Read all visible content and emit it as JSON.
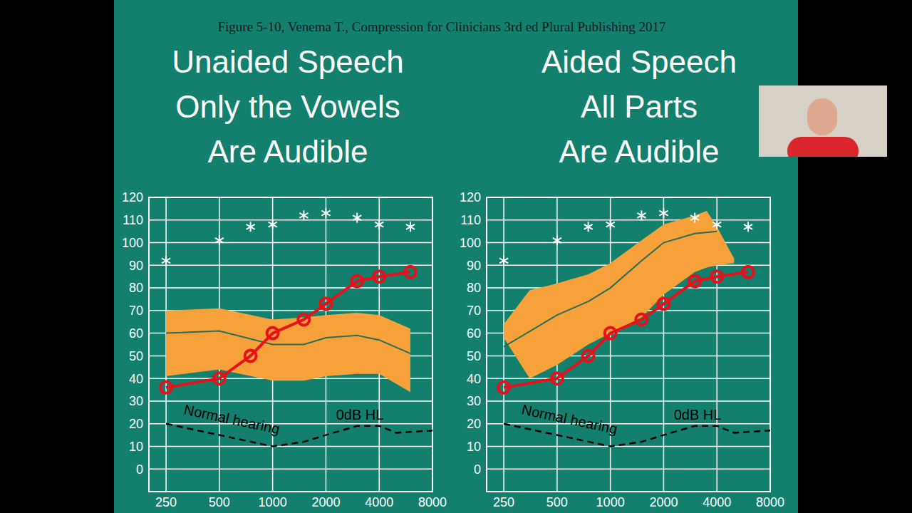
{
  "caption": "Figure 5-10, Venema T., Compression for Clinicians 3rd ed Plural Publishing 2017",
  "chart_data": [
    {
      "type": "line",
      "title": [
        "Unaided Speech",
        "Only the Vowels",
        "Are Audible"
      ],
      "log": "x",
      "grid": true,
      "xlim": [
        200,
        8000
      ],
      "xticks": [
        250,
        500,
        1000,
        2000,
        4000,
        8000
      ],
      "ylim": [
        -10,
        120
      ],
      "yticks": [
        0,
        10,
        20,
        30,
        40,
        50,
        60,
        70,
        80,
        90,
        100,
        110,
        120
      ],
      "annotations": [
        "Normal hearing",
        "0dB HL"
      ],
      "series": [
        {
          "type": "area",
          "color": "#f7a13a",
          "x": [
            250,
            500,
            1000,
            1500,
            2000,
            3000,
            4000,
            6000
          ],
          "low": [
            41,
            44,
            39,
            39,
            41,
            42,
            42,
            34
          ],
          "high": [
            70,
            71,
            66,
            67,
            68,
            69,
            68,
            62
          ]
        },
        {
          "type": "line",
          "color": "#2b6e58",
          "x": [
            250,
            500,
            1000,
            1500,
            2000,
            3000,
            4000,
            6000
          ],
          "values": [
            60,
            61,
            55,
            55,
            58,
            59,
            57,
            51
          ]
        },
        {
          "type": "line",
          "color": "#e8101a",
          "marker": "circle",
          "x": [
            250,
            500,
            750,
            1000,
            1500,
            2000,
            3000,
            4000,
            6000
          ],
          "values": [
            36,
            40,
            50,
            60,
            66,
            73,
            83,
            85,
            87
          ]
        },
        {
          "type": "scatter",
          "color": "#ffffff",
          "marker": "asterisk",
          "x": [
            250,
            500,
            750,
            1000,
            1500,
            2000,
            3000,
            4000,
            6000
          ],
          "values": [
            92,
            101,
            107,
            108,
            112,
            113,
            111,
            108,
            107
          ]
        },
        {
          "type": "line",
          "color": "#000000",
          "line_style": "dashed",
          "x": [
            250,
            500,
            1000,
            1500,
            2000,
            3000,
            4000,
            5000,
            8000
          ],
          "values": [
            20,
            15,
            10,
            12,
            15,
            19,
            19,
            16,
            17
          ]
        }
      ]
    },
    {
      "type": "line",
      "title": [
        "Aided Speech",
        "All Parts",
        "Are Audible"
      ],
      "log": "x",
      "grid": true,
      "xlim": [
        200,
        8000
      ],
      "xticks": [
        250,
        500,
        1000,
        2000,
        4000,
        8000
      ],
      "ylim": [
        -10,
        120
      ],
      "yticks": [
        0,
        10,
        20,
        30,
        40,
        50,
        60,
        70,
        80,
        90,
        100,
        110,
        120
      ],
      "annotations": [
        "Normal hearing",
        "0dB HL"
      ],
      "series": [
        {
          "type": "area",
          "color": "#f7a13a",
          "x": [
            250,
            350,
            500,
            750,
            1000,
            1500,
            2000,
            3000,
            3500,
            4000,
            5000
          ],
          "low": [
            58,
            40,
            46,
            55,
            60,
            67,
            77,
            87,
            89,
            90,
            91
          ],
          "high": [
            64,
            79,
            82,
            86,
            91,
            101,
            108,
            112,
            114,
            107,
            93
          ]
        },
        {
          "type": "line",
          "color": "#2b6e58",
          "x": [
            250,
            500,
            750,
            1000,
            1500,
            2000,
            3000,
            4000
          ],
          "values": [
            54,
            68,
            74,
            80,
            92,
            100,
            104,
            105
          ]
        },
        {
          "type": "line",
          "color": "#e8101a",
          "marker": "circle",
          "x": [
            250,
            500,
            750,
            1000,
            1500,
            2000,
            3000,
            4000,
            6000
          ],
          "values": [
            36,
            40,
            50,
            60,
            66,
            73,
            83,
            85,
            87
          ]
        },
        {
          "type": "scatter",
          "color": "#ffffff",
          "marker": "asterisk",
          "x": [
            250,
            500,
            750,
            1000,
            1500,
            2000,
            3000,
            4000,
            6000
          ],
          "values": [
            92,
            101,
            107,
            108,
            112,
            113,
            111,
            108,
            107
          ]
        },
        {
          "type": "line",
          "color": "#000000",
          "line_style": "dashed",
          "x": [
            250,
            500,
            1000,
            1500,
            2000,
            3000,
            4000,
            5000,
            8000
          ],
          "values": [
            20,
            15,
            10,
            12,
            15,
            19,
            19,
            16,
            17
          ]
        }
      ]
    }
  ]
}
